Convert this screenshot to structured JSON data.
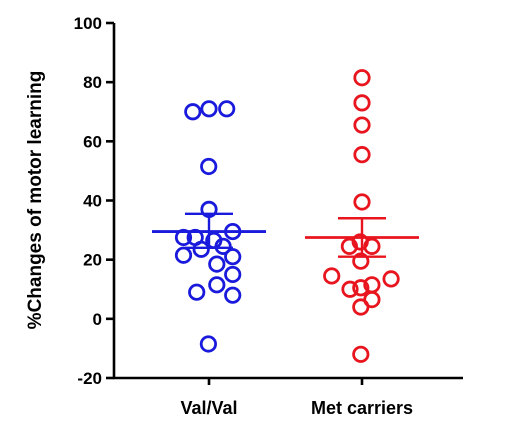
{
  "chart_data": {
    "type": "scatter",
    "xlabel": "",
    "ylabel": "%Changes of motor learning",
    "ylim": [
      -20,
      100
    ],
    "yticks": [
      -20,
      0,
      20,
      40,
      60,
      80,
      100
    ],
    "grid": false,
    "legend": "none",
    "categories": [
      "Val/Val",
      "Met carriers"
    ],
    "series": [
      {
        "category": "Val/Val",
        "color": "#1a1adc",
        "mean": 29.5,
        "sem_upper": 35.5,
        "sem_lower": 24.0,
        "points": [
          {
            "offset": -0.54,
            "value": 70
          },
          {
            "offset": 0.0,
            "value": 71
          },
          {
            "offset": 0.59,
            "value": 71
          },
          {
            "offset": -0.01,
            "value": 51.5
          },
          {
            "offset": 0.0,
            "value": 37
          },
          {
            "offset": -0.85,
            "value": 27.5
          },
          {
            "offset": -0.46,
            "value": 27.5
          },
          {
            "offset": 0.16,
            "value": 26.5
          },
          {
            "offset": 0.79,
            "value": 29.5
          },
          {
            "offset": -0.85,
            "value": 21.5
          },
          {
            "offset": -0.26,
            "value": 23.5
          },
          {
            "offset": 0.47,
            "value": 24.5
          },
          {
            "offset": 0.26,
            "value": 18.5
          },
          {
            "offset": 0.79,
            "value": 21
          },
          {
            "offset": 0.79,
            "value": 15
          },
          {
            "offset": 0.26,
            "value": 11.5
          },
          {
            "offset": -0.41,
            "value": 9
          },
          {
            "offset": 0.79,
            "value": 8
          },
          {
            "offset": -0.02,
            "value": -8.5
          }
        ]
      },
      {
        "category": "Met carriers",
        "color": "#e8141e",
        "mean": 27.5,
        "sem_upper": 34,
        "sem_lower": 21,
        "points": [
          {
            "offset": 0.0,
            "value": 81.5
          },
          {
            "offset": 0.0,
            "value": 73
          },
          {
            "offset": 0.0,
            "value": 65.5
          },
          {
            "offset": 0.0,
            "value": 55.5
          },
          {
            "offset": 0.0,
            "value": 39.5
          },
          {
            "offset": -0.42,
            "value": 24.5
          },
          {
            "offset": -0.06,
            "value": 26
          },
          {
            "offset": 0.33,
            "value": 24.5
          },
          {
            "offset": -0.04,
            "value": 19.5
          },
          {
            "offset": -1.01,
            "value": 14.5
          },
          {
            "offset": 0.97,
            "value": 13.5
          },
          {
            "offset": -0.4,
            "value": 10
          },
          {
            "offset": -0.04,
            "value": 10.5
          },
          {
            "offset": 0.33,
            "value": 11.5
          },
          {
            "offset": -0.04,
            "value": 4
          },
          {
            "offset": 0.33,
            "value": 6.5
          },
          {
            "offset": -0.04,
            "value": -12
          }
        ]
      }
    ]
  }
}
